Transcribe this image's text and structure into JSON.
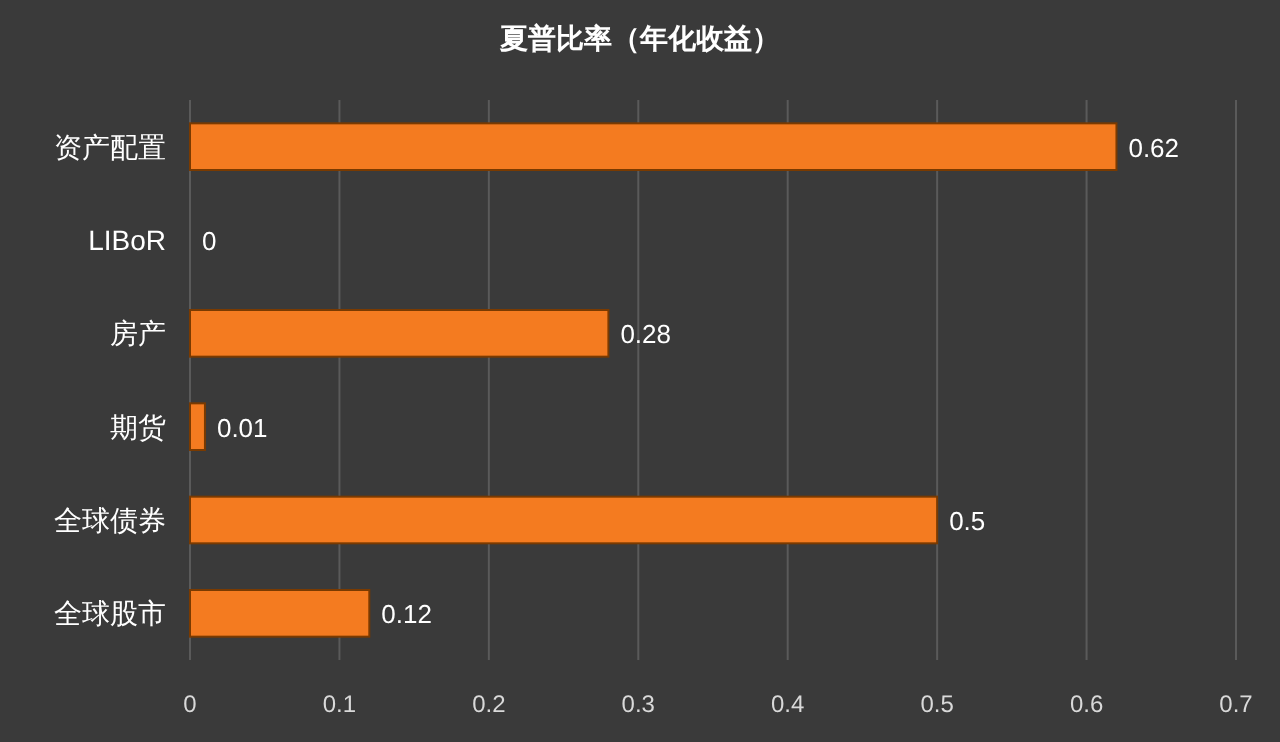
{
  "chart_data": {
    "type": "bar",
    "orientation": "horizontal",
    "title": "夏普比率（年化收益）",
    "categories": [
      "资产配置",
      "LIBoR",
      "房产",
      "期货",
      "全球债券",
      "全球股市"
    ],
    "values": [
      0.62,
      0,
      0.28,
      0.01,
      0.5,
      0.12
    ],
    "color": "#f47b20",
    "xlim": [
      0,
      0.7
    ],
    "xticks": [
      0,
      0.1,
      0.2,
      0.3,
      0.4,
      0.5,
      0.6,
      0.7
    ],
    "grid": "x",
    "data_labels": true
  }
}
